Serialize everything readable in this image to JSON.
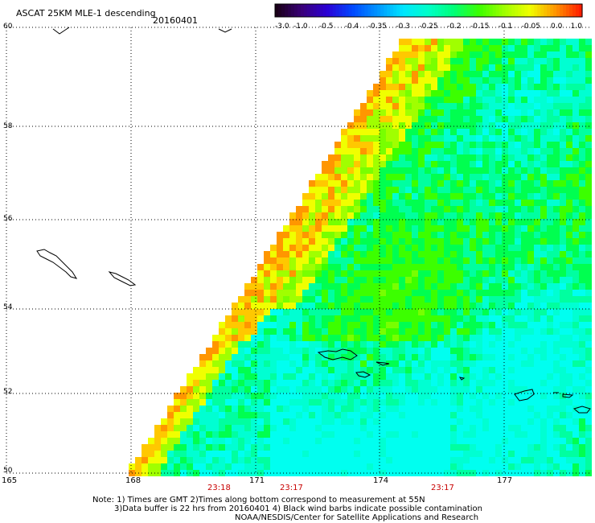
{
  "header": {
    "product_title": "ASCAT 25KM MLE-1 descending",
    "date": "20160401"
  },
  "colorbar": {
    "tick_labels": [
      "-3.0",
      "-1.0",
      "-0.5",
      "-0.4",
      "-0.35",
      "-0.3",
      "-0.25",
      "-0.2",
      "-0.15",
      "-0.1",
      "-0.05",
      "0.0",
      "1.0"
    ],
    "colors": [
      "#1a0018",
      "#3a0078",
      "#2a00d6",
      "#0048ff",
      "#0096ff",
      "#00e6ff",
      "#00ffc8",
      "#00ff78",
      "#3cff00",
      "#a0ff00",
      "#f0ff00",
      "#ff9600",
      "#ff1e00"
    ]
  },
  "map": {
    "lat_labels": [
      "60",
      "58",
      "56",
      "54",
      "52",
      "50"
    ],
    "lon_labels": [
      "165",
      "168",
      "171",
      "174",
      "177"
    ],
    "pass_times": [
      "23:18",
      "23:17",
      "23:17"
    ]
  },
  "notes": {
    "line1": "Note: 1) Times are GMT 2)Times along bottom correspond to measurement at 55N",
    "line2": "3)Data buffer is 22 hrs from 20160401 4) Black wind barbs indicate possible contamination",
    "line3": "NOAA/NESDIS/Center for Satellite Applications and Research"
  },
  "colors": {
    "time_text": "#c80000",
    "grid": "#000000",
    "coastline": "#000000"
  }
}
